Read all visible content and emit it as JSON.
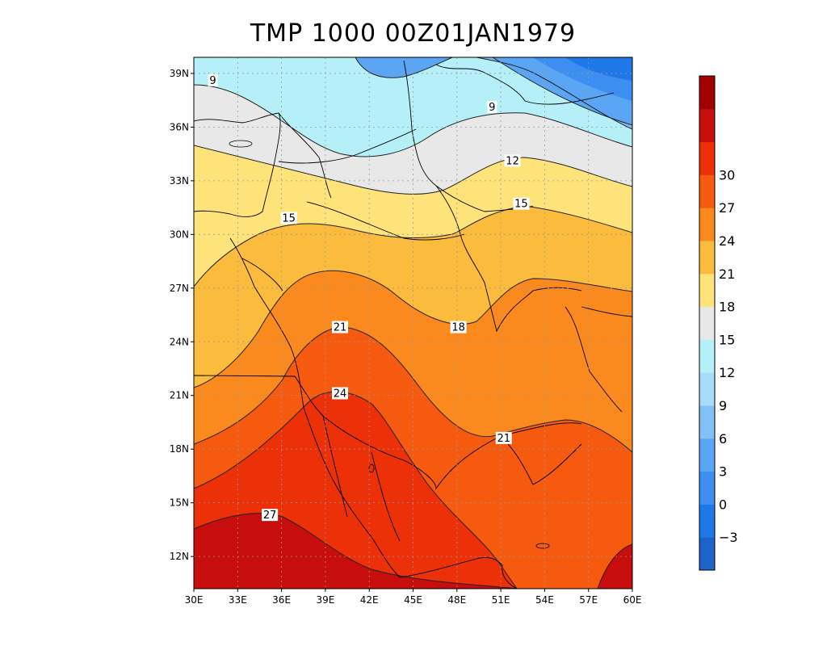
{
  "title": "TMP 1000 00Z01JAN1979",
  "map": {
    "lat_ticks": [
      "12N",
      "15N",
      "18N",
      "21N",
      "24N",
      "27N",
      "30N",
      "33N",
      "36N",
      "39N"
    ],
    "lon_ticks": [
      "30E",
      "33E",
      "36E",
      "39E",
      "42E",
      "45E",
      "48E",
      "51E",
      "54E",
      "57E",
      "60E"
    ],
    "grid": true
  },
  "contour_labels": [
    {
      "text": "9",
      "lon": 31.3,
      "lat": 38.6
    },
    {
      "text": "9",
      "lon": 50.4,
      "lat": 37.1
    },
    {
      "text": "12",
      "lon": 51.8,
      "lat": 34.1
    },
    {
      "text": "15",
      "lon": 36.5,
      "lat": 30.9
    },
    {
      "text": "15",
      "lon": 52.4,
      "lat": 31.7
    },
    {
      "text": "18",
      "lon": 48.1,
      "lat": 24.8
    },
    {
      "text": "21",
      "lon": 40.0,
      "lat": 24.8
    },
    {
      "text": "21",
      "lon": 51.2,
      "lat": 18.6
    },
    {
      "text": "24",
      "lon": 40.0,
      "lat": 21.1
    },
    {
      "text": "27",
      "lon": 35.2,
      "lat": 14.3
    }
  ],
  "colorbar": {
    "labels": [
      "-3",
      "0",
      "3",
      "6",
      "9",
      "12",
      "15",
      "18",
      "21",
      "24",
      "27",
      "30"
    ],
    "colors": [
      "#1e63c8",
      "#1e78e8",
      "#3c8ef0",
      "#5aa6f5",
      "#82c1f8",
      "#a7dcfa",
      "#b5f0f8",
      "#e8e8e8",
      "#fee37a",
      "#fbbb3c",
      "#fb8a1e",
      "#f55a0e",
      "#ec3008",
      "#c80d0d",
      "#a00000"
    ]
  }
}
